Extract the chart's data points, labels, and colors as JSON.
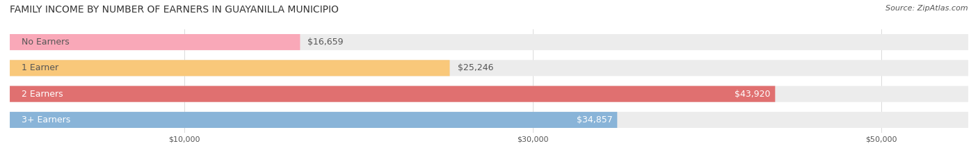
{
  "title": "FAMILY INCOME BY NUMBER OF EARNERS IN GUAYANILLA MUNICIPIO",
  "source": "Source: ZipAtlas.com",
  "categories": [
    "No Earners",
    "1 Earner",
    "2 Earners",
    "3+ Earners"
  ],
  "values": [
    16659,
    25246,
    43920,
    34857
  ],
  "bar_colors": [
    "#f9a8b8",
    "#f9c87a",
    "#e07070",
    "#89b4d8"
  ],
  "bar_bg_color": "#ececec",
  "label_colors": [
    "#555555",
    "#555555",
    "#ffffff",
    "#ffffff"
  ],
  "value_label_colors": [
    "#555555",
    "#555555",
    "#ffffff",
    "#ffffff"
  ],
  "xlim": [
    0,
    55000
  ],
  "xticks": [
    10000,
    30000,
    50000
  ],
  "xtick_labels": [
    "$10,000",
    "$30,000",
    "$50,000"
  ],
  "title_fontsize": 10,
  "source_fontsize": 8,
  "bar_label_fontsize": 9,
  "value_label_fontsize": 9,
  "figsize": [
    14.06,
    2.33
  ],
  "dpi": 100
}
